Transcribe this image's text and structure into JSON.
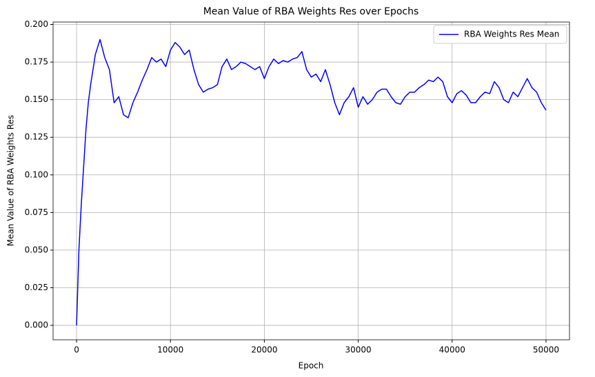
{
  "chart_data": {
    "type": "line",
    "title": "Mean Value of RBA Weights Res over Epochs",
    "x_label": "Epoch",
    "y_label": "Mean Value of RBA Weights Res",
    "x": [
      0,
      250,
      500,
      750,
      1000,
      1250,
      1500,
      2000,
      2500,
      3000,
      3500,
      4000,
      4500,
      5000,
      5500,
      6000,
      6500,
      7000,
      7500,
      8000,
      8500,
      9000,
      9500,
      10000,
      10500,
      11000,
      11500,
      12000,
      12500,
      13000,
      13500,
      14000,
      14500,
      15000,
      15500,
      16000,
      16500,
      17000,
      17500,
      18000,
      18500,
      19000,
      19500,
      20000,
      20500,
      21000,
      21500,
      22000,
      22500,
      23000,
      23500,
      24000,
      24500,
      25000,
      25500,
      26000,
      26500,
      27000,
      27500,
      28000,
      28500,
      29000,
      29500,
      30000,
      30500,
      31000,
      31500,
      32000,
      32500,
      33000,
      33500,
      34000,
      34500,
      35000,
      35500,
      36000,
      36500,
      37000,
      37500,
      38000,
      38500,
      39000,
      39500,
      40000,
      40500,
      41000,
      41500,
      42000,
      42500,
      43000,
      43500,
      44000,
      44500,
      45000,
      45500,
      46000,
      46500,
      47000,
      47500,
      48000,
      48500,
      49000,
      49500,
      50000
    ],
    "series": [
      {
        "name": "RBA Weights Res Mean",
        "color": "#0000ff",
        "values": [
          0,
          0.05,
          0.08,
          0.105,
          0.13,
          0.148,
          0.16,
          0.18,
          0.19,
          0.178,
          0.17,
          0.148,
          0.152,
          0.14,
          0.138,
          0.148,
          0.155,
          0.163,
          0.17,
          0.178,
          0.175,
          0.177,
          0.172,
          0.183,
          0.188,
          0.185,
          0.18,
          0.183,
          0.17,
          0.16,
          0.155,
          0.157,
          0.158,
          0.16,
          0.172,
          0.177,
          0.17,
          0.172,
          0.175,
          0.174,
          0.172,
          0.17,
          0.172,
          0.164,
          0.172,
          0.177,
          0.174,
          0.176,
          0.175,
          0.177,
          0.178,
          0.182,
          0.17,
          0.165,
          0.167,
          0.162,
          0.17,
          0.16,
          0.148,
          0.14,
          0.148,
          0.152,
          0.158,
          0.145,
          0.152,
          0.147,
          0.15,
          0.155,
          0.157,
          0.157,
          0.152,
          0.148,
          0.147,
          0.152,
          0.155,
          0.155,
          0.158,
          0.16,
          0.163,
          0.162,
          0.165,
          0.162,
          0.152,
          0.148,
          0.154,
          0.156,
          0.153,
          0.148,
          0.148,
          0.152,
          0.155,
          0.154,
          0.162,
          0.158,
          0.15,
          0.148,
          0.155,
          0.152,
          0.158,
          0.164,
          0.158,
          0.155,
          0.148,
          0.143
        ]
      }
    ],
    "xlim": [
      -2500,
      52500
    ],
    "ylim": [
      -0.0096,
      0.2016
    ],
    "xticks": [
      0,
      10000,
      20000,
      30000,
      40000,
      50000
    ],
    "yticks": [
      {
        "value": 0,
        "label": "0.000"
      },
      {
        "value": 0.025,
        "label": "0.025"
      },
      {
        "value": 0.05,
        "label": "0.050"
      },
      {
        "value": 0.075,
        "label": "0.075"
      },
      {
        "value": 0.1,
        "label": "0.100"
      },
      {
        "value": 0.125,
        "label": "0.125"
      },
      {
        "value": 0.15,
        "label": "0.150"
      },
      {
        "value": 0.175,
        "label": "0.175"
      },
      {
        "value": 0.2,
        "label": "0.200"
      }
    ],
    "grid": true,
    "legend": "upper right"
  }
}
